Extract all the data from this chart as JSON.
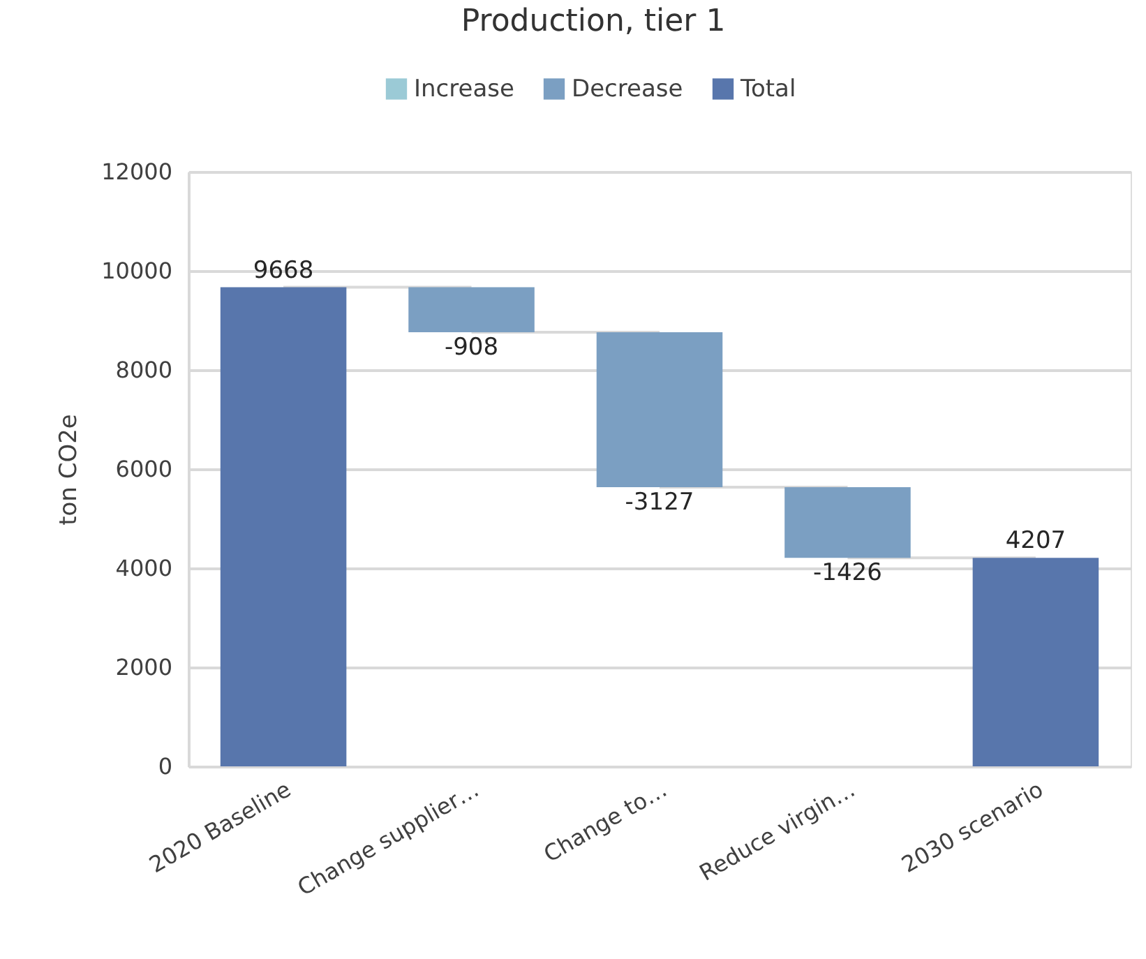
{
  "chart_data": {
    "type": "bar",
    "title": "Production, tier 1",
    "ylabel": "ton CO2e",
    "categories": [
      "2020 Baseline",
      "Change supplier…",
      "Change to…",
      "Reduce virgin…",
      "2030 scenario"
    ],
    "series": [
      {
        "name": "Increase",
        "color": "#9bcad6",
        "values": [
          null,
          null,
          null,
          null,
          null
        ]
      },
      {
        "name": "Decrease",
        "color": "#7b9fc2",
        "values": [
          null,
          -908,
          -3127,
          -1426,
          null
        ],
        "base": [
          null,
          9668,
          8760,
          5633,
          null
        ]
      },
      {
        "name": "Total",
        "color": "#5876ac",
        "values": [
          9668,
          null,
          null,
          null,
          4207
        ]
      }
    ],
    "ylim": [
      0,
      12000
    ],
    "yticks": [
      0,
      2000,
      4000,
      6000,
      8000,
      10000,
      12000
    ],
    "grid": "y",
    "legend": "top",
    "data_labels": true
  }
}
